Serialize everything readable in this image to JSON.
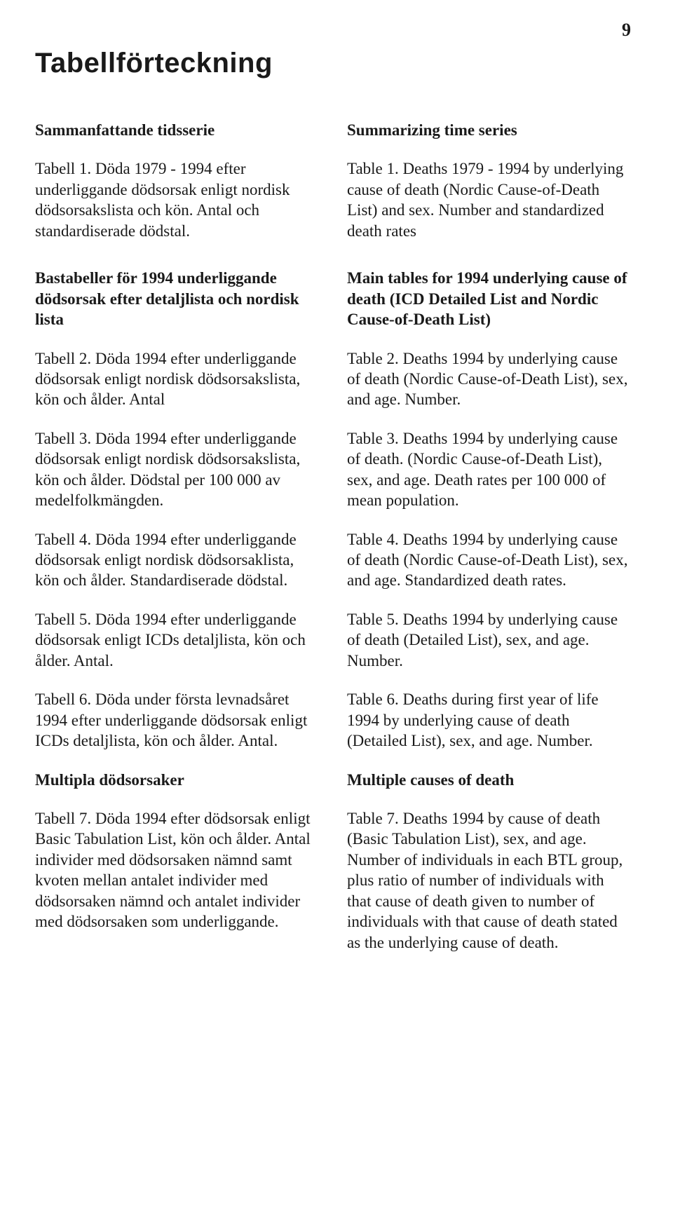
{
  "page_number": "9",
  "title": "Tabellförteckning",
  "left": {
    "sec1_head": "Sammanfattande tidsserie",
    "sec1_p1": "Tabell 1. Döda 1979 - 1994 efter underliggande dödsorsak enligt nordisk dödsorsakslista och kön. Antal och standardiserade dödstal.",
    "sec2_head": "Bastabeller för 1994   underliggande dödsorsak efter detaljlista och nordisk lista",
    "sec2_p1": "Tabell 2. Döda 1994 efter underliggande dödsorsak enligt nordisk dödsorsakslista, kön och ålder. Antal",
    "sec2_p2": "Tabell 3. Döda 1994 efter underliggande dödsorsak enligt nordisk dödsorsakslista, kön och ålder. Dödstal per 100 000 av medelfolkmängden.",
    "sec2_p3": "Tabell 4. Döda 1994 efter underliggande dödsorsak enligt nordisk dödsorsaklista, kön och ålder. Standardiserade dödstal.",
    "sec2_p4": "Tabell 5. Döda 1994 efter underliggande dödsorsak enligt ICDs detaljlista, kön och ålder. Antal.",
    "sec2_p5": "Tabell 6. Döda under första levnadsåret 1994 efter underliggande dödsorsak enligt ICDs detaljlista, kön och ålder. Antal.",
    "sec3_head": "Multipla dödsorsaker",
    "sec3_p1": "Tabell 7. Döda 1994 efter dödsorsak enligt Basic Tabulation List, kön och ålder. Antal individer med dödsorsaken nämnd samt kvoten mellan antalet individer med dödsorsaken nämnd och antalet individer med dödsorsaken som underliggande."
  },
  "right": {
    "sec1_head": "Summarizing time series",
    "sec1_p1": "Table 1. Deaths 1979 - 1994 by underlying cause of death (Nordic Cause-of-Death List) and sex. Number and standardized death rates",
    "sec2_head": "Main tables for 1994   underlying cause of death (ICD Detailed List and Nordic Cause-of-Death List)",
    "sec2_p1": "Table 2. Deaths 1994 by underlying cause of death (Nordic Cause-of-Death List), sex, and age. Number.",
    "sec2_p2": "Table 3. Deaths 1994 by underlying cause of death.\n (Nordic Cause-of-Death List), sex, and age. Death rates\n per 100 000 of mean population.",
    "sec2_p3": "Table 4. Deaths 1994 by underlying cause of death (Nordic Cause-of-Death List), sex, and age. Standardized death rates.",
    "sec2_p4": "Table 5. Deaths 1994 by underlying cause of death (Detailed List), sex, and age. Number.",
    "sec2_p5": "Table 6. Deaths during first year of life 1994 by underlying cause of death (Detailed List), sex, and age. Number.",
    "sec3_head": "Multiple causes of death",
    "sec3_p1": "Table 7. Deaths 1994 by cause of death (Basic Tabulation List), sex, and age. Number of individuals in each BTL group, plus ratio of number of individuals with that cause of death given to number of individuals with that cause of death stated as the underlying cause of death."
  }
}
